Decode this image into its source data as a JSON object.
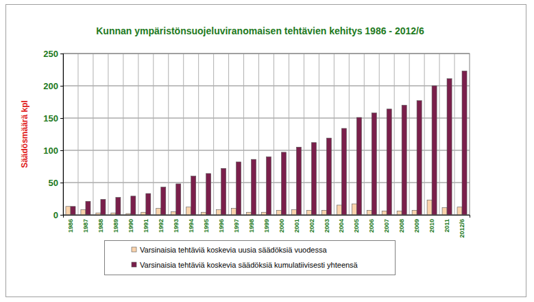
{
  "chart_data": {
    "type": "bar",
    "title": "Kunnan ympäristönsuojeluviranomaisen tehtävien kehitys 1986 - 2012/6",
    "y_label": "Säädösmäärä kpl",
    "categories": [
      "1986",
      "1987",
      "1988",
      "1989",
      "1990",
      "1991",
      "1992",
      "1993",
      "1994",
      "1995",
      "1996",
      "1997",
      "1998",
      "1999",
      "2000",
      "2001",
      "2002",
      "2003",
      "2004",
      "2005",
      "2006",
      "2007",
      "2008",
      "2009",
      "2010",
      "2011",
      "2012/6"
    ],
    "series": [
      {
        "name": "Varsinaisia tehtäviä koskevia uusia säädöksiä vuodessa",
        "color": "#fad3ac",
        "values": [
          13,
          8,
          3,
          3,
          2,
          4,
          10,
          5,
          12,
          4,
          8,
          10,
          4,
          4,
          7,
          8,
          7,
          7,
          15,
          17,
          7,
          6,
          6,
          7,
          23,
          11,
          12
        ]
      },
      {
        "name": "Varsinaisia tehtäviä koskevia säädöksiä kumulatiivisesti yhteensä",
        "color": "#7a1f4b",
        "values": [
          13,
          21,
          24,
          27,
          29,
          33,
          43,
          48,
          60,
          64,
          72,
          82,
          86,
          90,
          97,
          105,
          112,
          119,
          134,
          151,
          158,
          164,
          170,
          177,
          200,
          211,
          223
        ]
      }
    ],
    "ylim": [
      0,
      250
    ],
    "yticks": [
      0,
      50,
      100,
      150,
      200,
      250
    ],
    "grid": true,
    "legend": "bottom"
  }
}
